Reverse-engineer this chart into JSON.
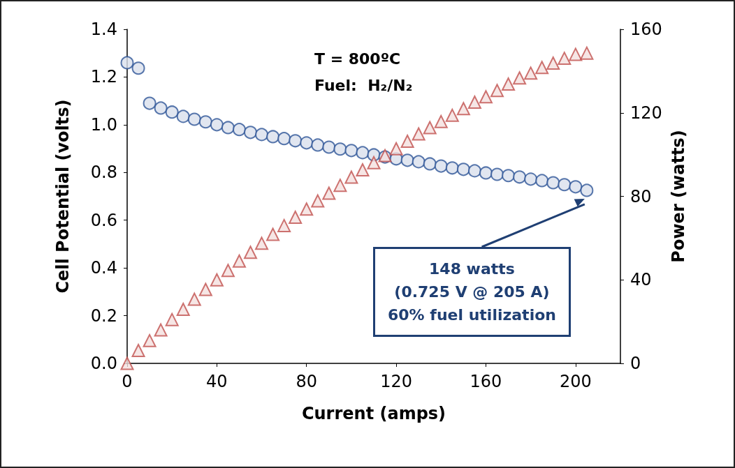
{
  "chart_data": {
    "type": "scatter",
    "xlabel": "Current (amps)",
    "ylabel": "Cell Potential (volts)",
    "y2label": "Power (watts)",
    "xlim": [
      0,
      220
    ],
    "xticks": [
      0,
      40,
      80,
      120,
      160,
      200
    ],
    "ylim": [
      0,
      1.4
    ],
    "yticks": [
      {
        "value": 0,
        "label": "0.0"
      },
      {
        "value": 0.2,
        "label": "0.2"
      },
      {
        "value": 0.4,
        "label": "0.4"
      },
      {
        "value": 0.6,
        "label": "0.6"
      },
      {
        "value": 0.8,
        "label": "0.8"
      },
      {
        "value": 1,
        "label": "1.0"
      },
      {
        "value": 1.2,
        "label": "1.2"
      },
      {
        "value": 1.4,
        "label": "1.4"
      }
    ],
    "y2lim": [
      0,
      160
    ],
    "y2ticks": [
      0,
      40,
      80,
      120,
      160
    ],
    "grid": false,
    "x": [
      0,
      5,
      10,
      15,
      20,
      25,
      30,
      35,
      40,
      45,
      50,
      55,
      60,
      65,
      70,
      75,
      80,
      85,
      90,
      95,
      100,
      105,
      110,
      115,
      120,
      125,
      130,
      135,
      140,
      145,
      150,
      155,
      160,
      165,
      170,
      175,
      180,
      185,
      190,
      195,
      200,
      205
    ],
    "series": [
      {
        "color": "#2e5597",
        "marker": "circle",
        "values": [
          1.26,
          1.237,
          1.09,
          1.07,
          1.053,
          1.035,
          1.023,
          1.012,
          1.0,
          0.988,
          0.98,
          0.968,
          0.959,
          0.95,
          0.942,
          0.933,
          0.924,
          0.915,
          0.906,
          0.898,
          0.892,
          0.883,
          0.874,
          0.865,
          0.857,
          0.851,
          0.845,
          0.836,
          0.827,
          0.819,
          0.813,
          0.807,
          0.798,
          0.792,
          0.787,
          0.781,
          0.772,
          0.766,
          0.757,
          0.749,
          0.74,
          0.725
        ]
      },
      {
        "color": "#c0504d",
        "marker": "triangle",
        "axis": "y2",
        "values": [
          0,
          6.2,
          10.9,
          16,
          21,
          25.9,
          30.7,
          35.4,
          40,
          44.5,
          49,
          53.2,
          57.5,
          61.8,
          66,
          70,
          73.9,
          77.8,
          81.5,
          85.3,
          89.2,
          92.7,
          96.1,
          99.5,
          102.8,
          106.4,
          109.9,
          112.9,
          115.8,
          118.8,
          122,
          125.1,
          127.7,
          130.7,
          133.8,
          136.7,
          139,
          141.7,
          143.8,
          146.1,
          148,
          148.6
        ]
      }
    ],
    "annotations": [
      "T = 800ºC",
      "Fuel:  H₂/N₂",
      "148 watts\n(0.725 V @ 205 A)\n60% fuel utilization"
    ]
  }
}
